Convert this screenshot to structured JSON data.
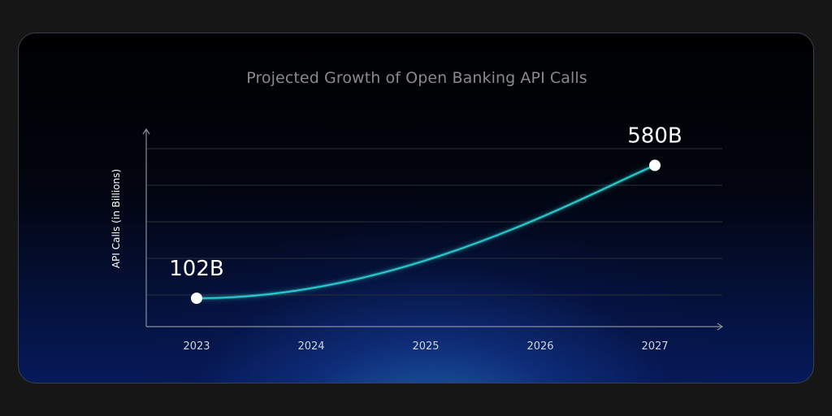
{
  "chart_data": {
    "type": "line",
    "title": "Projected Growth of Open Banking API Calls",
    "xlabel": "",
    "ylabel": "API Calls (in Billions)",
    "categories": [
      "2023",
      "2024",
      "2025",
      "2026",
      "2027"
    ],
    "series": [
      {
        "values": [
          102,
          null,
          null,
          null,
          580
        ]
      }
    ],
    "data_labels": [
      {
        "category": "2023",
        "label": "102B"
      },
      {
        "category": "2027",
        "label": "580B"
      }
    ],
    "grid": true,
    "colors": {
      "line": "#2fd6d6",
      "grid": "#2a2f3c",
      "axis": "#8a8f99",
      "tick_text": "#d0d4dc",
      "point": "#ffffff"
    }
  }
}
